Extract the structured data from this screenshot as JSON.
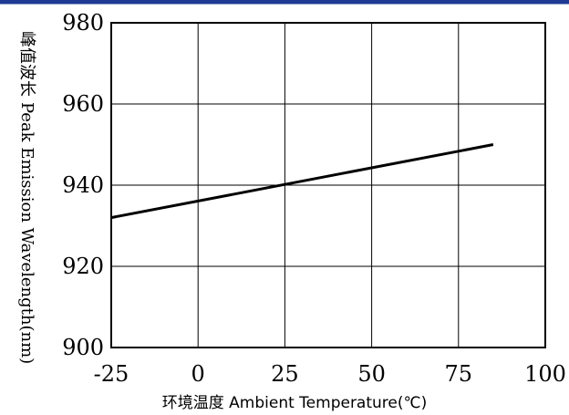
{
  "chart_data": {
    "type": "line",
    "xlabel": "环境温度 Ambient Temperature(℃)",
    "ylabel_cn": "峰值波长",
    "ylabel_en": "Peak Emission Wavelength(nm)",
    "x_ticks": [
      -25,
      0,
      25,
      50,
      75,
      100
    ],
    "y_ticks": [
      900,
      920,
      940,
      960,
      980
    ],
    "xlim": [
      -25,
      100
    ],
    "ylim": [
      900,
      980
    ],
    "grid": true,
    "series": [
      {
        "x": [
          -25,
          85
        ],
        "y": [
          932,
          950
        ]
      }
    ]
  },
  "colors": {
    "top_band": "#1f3a93",
    "line": "#000000",
    "grid": "#000000"
  }
}
